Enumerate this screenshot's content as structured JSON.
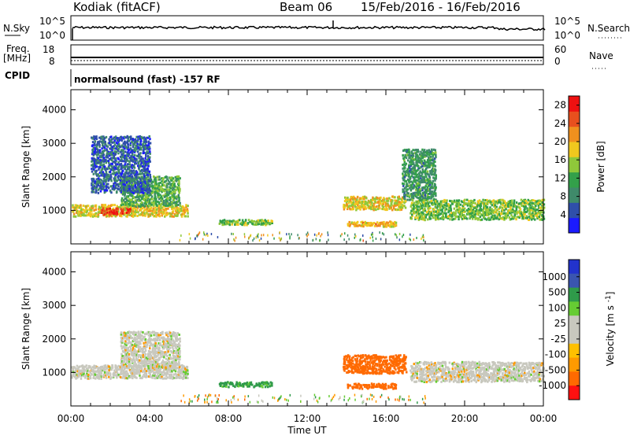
{
  "header": {
    "station": "Kodiak (fitACF)",
    "beam": "Beam 06",
    "dates": "15/Feb/2016 - 16/Feb/2016"
  },
  "top_panels": {
    "nsky_label": "N.Sky",
    "nsky_ticks": [
      "10^5",
      "10^0"
    ],
    "nsearch_label": "N.Search",
    "nsearch_ticks": [
      "10^5",
      "10^0"
    ],
    "freq_label": "Freq.",
    "freq_unit": "[MHz]",
    "freq_ticks": [
      "18",
      "8"
    ],
    "nave_label": "Nave",
    "nave_ticks": [
      "60",
      "0"
    ],
    "cpid_label": "CPID",
    "cpid_text": "normalsound (fast) -157 RF"
  },
  "colors": {
    "power_scale": [
      "#1b1bff",
      "#2f4faa",
      "#3f8a6a",
      "#33a04a",
      "#8fc83a",
      "#f0c81e",
      "#f0901e",
      "#e8501e",
      "#ee1111"
    ],
    "velocity_scale": [
      "#ff1111",
      "#ff6a00",
      "#ff9a00",
      "#ffc000",
      "#c8c8be",
      "#c8c8be",
      "#66cc33",
      "#2f9a4a",
      "#3a55b0",
      "#2233cc"
    ],
    "ground_scatter": "#c8c8be"
  },
  "chart_data": [
    {
      "type": "heatmap",
      "name": "power",
      "xlabel": "Time UT",
      "ylabel": "Slant Range [km]",
      "x_ticks": [
        "00:00",
        "04:00",
        "08:00",
        "12:00",
        "16:00",
        "20:00",
        "00:00"
      ],
      "x_range_hours": [
        0,
        24
      ],
      "ylim": [
        0,
        4600
      ],
      "y_ticks": [
        1000,
        2000,
        3000,
        4000
      ],
      "colorbar": {
        "label": "Power [dB]",
        "ticks": [
          "4",
          "8",
          "12",
          "16",
          "20",
          "24",
          "28"
        ],
        "range": [
          0,
          30
        ]
      },
      "regions": [
        {
          "t0": 0.0,
          "t1": 5.9,
          "r0": 800,
          "r1": 1150,
          "value": 18
        },
        {
          "t0": 1.5,
          "t1": 3.0,
          "r0": 850,
          "r1": 1050,
          "value": 27
        },
        {
          "t0": 2.5,
          "t1": 5.5,
          "r0": 1100,
          "r1": 2000,
          "value": 12
        },
        {
          "t0": 1.0,
          "t1": 4.0,
          "r0": 1500,
          "r1": 3200,
          "value": 6
        },
        {
          "t0": 7.5,
          "t1": 10.2,
          "r0": 550,
          "r1": 700,
          "value": 14
        },
        {
          "t0": 13.8,
          "t1": 17.0,
          "r0": 1000,
          "r1": 1400,
          "value": 18
        },
        {
          "t0": 14.0,
          "t1": 16.5,
          "r0": 500,
          "r1": 650,
          "value": 20
        },
        {
          "t0": 16.8,
          "t1": 18.5,
          "r0": 1300,
          "r1": 2800,
          "value": 10
        },
        {
          "t0": 17.2,
          "t1": 24.0,
          "r0": 700,
          "r1": 1300,
          "value": 14
        }
      ]
    },
    {
      "type": "heatmap",
      "name": "velocity",
      "xlabel": "Time UT",
      "ylabel": "Slant Range [km]",
      "x_ticks": [
        "00:00",
        "04:00",
        "08:00",
        "12:00",
        "16:00",
        "20:00",
        "00:00"
      ],
      "x_range_hours": [
        0,
        24
      ],
      "ylim": [
        0,
        4600
      ],
      "y_ticks": [
        1000,
        2000,
        3000,
        4000
      ],
      "colorbar": {
        "label": "Velocity [m s^-1]",
        "ticks": [
          "1000",
          "500",
          "100",
          "25",
          "-25",
          "-100",
          "-500",
          "-1000"
        ]
      },
      "regions": [
        {
          "t0": 0.0,
          "t1": 5.9,
          "r0": 800,
          "r1": 1200,
          "value": 0
        },
        {
          "t0": 2.5,
          "t1": 5.5,
          "r0": 1100,
          "r1": 2200,
          "value": 0
        },
        {
          "t0": 7.5,
          "t1": 10.2,
          "r0": 550,
          "r1": 700,
          "value": 120
        },
        {
          "t0": 13.8,
          "t1": 17.0,
          "r0": 950,
          "r1": 1500,
          "value": -200
        },
        {
          "t0": 14.0,
          "t1": 16.5,
          "r0": 500,
          "r1": 650,
          "value": -300
        },
        {
          "t0": 17.2,
          "t1": 24.0,
          "r0": 700,
          "r1": 1300,
          "value": 0
        }
      ]
    }
  ]
}
